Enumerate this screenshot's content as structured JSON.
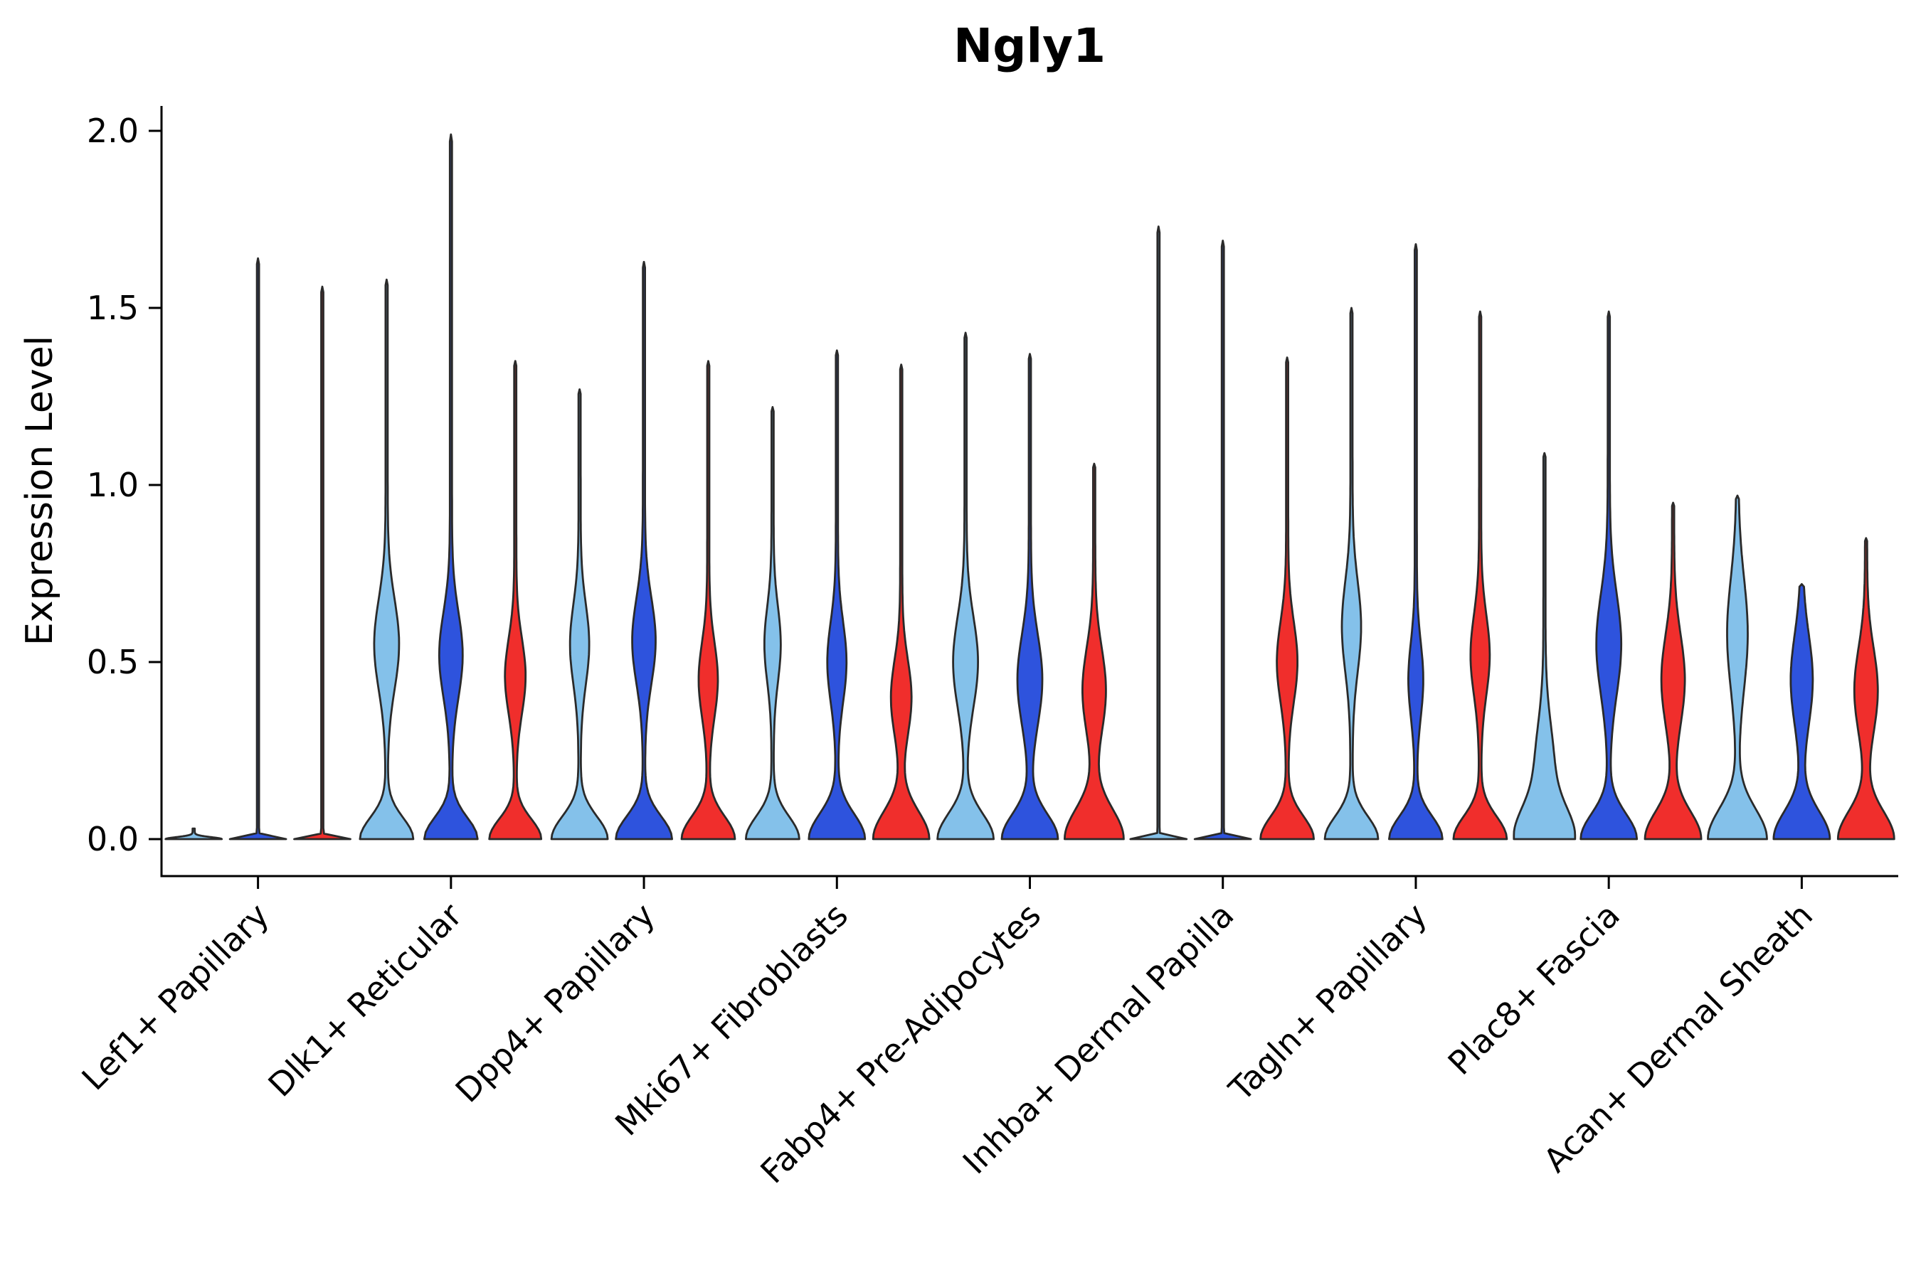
{
  "chart_data": {
    "type": "violin",
    "title": "Ngly1",
    "ylabel": "Expression Level",
    "xlabel": "",
    "ylim": [
      0,
      2.05
    ],
    "yticks": [
      0.0,
      0.5,
      1.0,
      1.5,
      2.0
    ],
    "ytick_labels": [
      "0.0",
      "0.5",
      "1.0",
      "1.5",
      "2.0"
    ],
    "grid": false,
    "legend": "none",
    "outline_color": "#2a2a2a",
    "axis_color": "#000000",
    "series_colors": [
      "#84C1EA",
      "#2E53DD",
      "#F02E2C"
    ],
    "categories": [
      "Lef1+ Papillary",
      "Dlk1+ Reticular",
      "Dpp4+ Papillary",
      "Mki67+ Fibroblasts",
      "Fabp4+ Pre-Adipocytes",
      "Inhba+ Dermal Papilla",
      "Tagln+ Papillary",
      "Plac8+ Fascia",
      "Acan+ Dermal Sheath"
    ],
    "groups": [
      {
        "label": "Lef1+ Papillary",
        "violins": [
          {
            "color": "#84C1EA",
            "max": 0.03,
            "base_hw": 38,
            "base_sigma": 0.008,
            "bulge_y": 0,
            "bulge_hw": 0,
            "bulge_sigma": 1
          },
          {
            "color": "#2E53DD",
            "max": 1.64,
            "base_hw": 38,
            "base_sigma": 0.008,
            "bulge_y": 0,
            "bulge_hw": 0,
            "bulge_sigma": 1
          },
          {
            "color": "#F02E2C",
            "max": 1.56,
            "base_hw": 38,
            "base_sigma": 0.008,
            "bulge_y": 0,
            "bulge_hw": 0,
            "bulge_sigma": 1
          }
        ]
      },
      {
        "label": "Dlk1+ Reticular",
        "violins": [
          {
            "color": "#84C1EA",
            "max": 1.58,
            "base_hw": 36,
            "base_sigma": 0.085,
            "bulge_y": 0.55,
            "bulge_hw": 16,
            "bulge_sigma": 0.18
          },
          {
            "color": "#2E53DD",
            "max": 1.99,
            "base_hw": 36,
            "base_sigma": 0.085,
            "bulge_y": 0.52,
            "bulge_hw": 15,
            "bulge_sigma": 0.17
          },
          {
            "color": "#F02E2C",
            "max": 1.35,
            "base_hw": 35,
            "base_sigma": 0.08,
            "bulge_y": 0.46,
            "bulge_hw": 13,
            "bulge_sigma": 0.15
          }
        ]
      },
      {
        "label": "Dpp4+ Papillary",
        "violins": [
          {
            "color": "#84C1EA",
            "max": 1.27,
            "base_hw": 38,
            "base_sigma": 0.09,
            "bulge_y": 0.55,
            "bulge_hw": 12,
            "bulge_sigma": 0.16
          },
          {
            "color": "#2E53DD",
            "max": 1.63,
            "base_hw": 38,
            "base_sigma": 0.09,
            "bulge_y": 0.56,
            "bulge_hw": 15,
            "bulge_sigma": 0.17
          },
          {
            "color": "#F02E2C",
            "max": 1.35,
            "base_hw": 36,
            "base_sigma": 0.09,
            "bulge_y": 0.45,
            "bulge_hw": 12,
            "bulge_sigma": 0.15
          }
        ]
      },
      {
        "label": "Mki67+ Fibroblasts",
        "violins": [
          {
            "color": "#84C1EA",
            "max": 1.22,
            "base_hw": 36,
            "base_sigma": 0.09,
            "bulge_y": 0.55,
            "bulge_hw": 10,
            "bulge_sigma": 0.15
          },
          {
            "color": "#2E53DD",
            "max": 1.38,
            "base_hw": 38,
            "base_sigma": 0.1,
            "bulge_y": 0.5,
            "bulge_hw": 12,
            "bulge_sigma": 0.16
          },
          {
            "color": "#F02E2C",
            "max": 1.34,
            "base_hw": 38,
            "base_sigma": 0.11,
            "bulge_y": 0.4,
            "bulge_hw": 13,
            "bulge_sigma": 0.15
          }
        ]
      },
      {
        "label": "Fabp4+ Pre-Adipocytes",
        "violins": [
          {
            "color": "#84C1EA",
            "max": 1.43,
            "base_hw": 38,
            "base_sigma": 0.1,
            "bulge_y": 0.5,
            "bulge_hw": 16,
            "bulge_sigma": 0.18
          },
          {
            "color": "#2E53DD",
            "max": 1.37,
            "base_hw": 38,
            "base_sigma": 0.1,
            "bulge_y": 0.45,
            "bulge_hw": 16,
            "bulge_sigma": 0.18
          },
          {
            "color": "#F02E2C",
            "max": 1.06,
            "base_hw": 40,
            "base_sigma": 0.12,
            "bulge_y": 0.42,
            "bulge_hw": 15,
            "bulge_sigma": 0.17
          }
        ]
      },
      {
        "label": "Inhba+ Dermal Papilla",
        "violins": [
          {
            "color": "#84C1EA",
            "max": 1.73,
            "base_hw": 38,
            "base_sigma": 0.008,
            "bulge_y": 0,
            "bulge_hw": 0,
            "bulge_sigma": 1
          },
          {
            "color": "#2E53DD",
            "max": 1.69,
            "base_hw": 38,
            "base_sigma": 0.008,
            "bulge_y": 0,
            "bulge_hw": 0,
            "bulge_sigma": 1
          },
          {
            "color": "#F02E2C",
            "max": 1.36,
            "base_hw": 36,
            "base_sigma": 0.09,
            "bulge_y": 0.5,
            "bulge_hw": 13,
            "bulge_sigma": 0.16
          }
        ]
      },
      {
        "label": "Tagln+ Papillary",
        "violins": [
          {
            "color": "#84C1EA",
            "max": 1.5,
            "base_hw": 36,
            "base_sigma": 0.09,
            "bulge_y": 0.6,
            "bulge_hw": 12,
            "bulge_sigma": 0.18
          },
          {
            "color": "#2E53DD",
            "max": 1.68,
            "base_hw": 36,
            "base_sigma": 0.09,
            "bulge_y": 0.45,
            "bulge_hw": 9,
            "bulge_sigma": 0.15
          },
          {
            "color": "#F02E2C",
            "max": 1.49,
            "base_hw": 36,
            "base_sigma": 0.09,
            "bulge_y": 0.52,
            "bulge_hw": 12,
            "bulge_sigma": 0.16
          }
        ]
      },
      {
        "label": "Plac8+ Fascia",
        "violins": [
          {
            "color": "#84C1EA",
            "max": 1.09,
            "base_hw": 38,
            "base_sigma": 0.12,
            "bulge_y": 0.2,
            "bulge_hw": 12,
            "bulge_sigma": 0.18
          },
          {
            "color": "#2E53DD",
            "max": 1.49,
            "base_hw": 38,
            "base_sigma": 0.1,
            "bulge_y": 0.55,
            "bulge_hw": 16,
            "bulge_sigma": 0.2
          },
          {
            "color": "#F02E2C",
            "max": 0.95,
            "base_hw": 38,
            "base_sigma": 0.11,
            "bulge_y": 0.45,
            "bulge_hw": 15,
            "bulge_sigma": 0.18
          }
        ]
      },
      {
        "label": "Acan+ Dermal Sheath",
        "violins": [
          {
            "color": "#84C1EA",
            "max": 0.97,
            "base_hw": 40,
            "base_sigma": 0.12,
            "bulge_y": 0.58,
            "bulge_hw": 13,
            "bulge_sigma": 0.22
          },
          {
            "color": "#2E53DD",
            "max": 0.72,
            "base_hw": 38,
            "base_sigma": 0.11,
            "bulge_y": 0.45,
            "bulge_hw": 14,
            "bulge_sigma": 0.18
          },
          {
            "color": "#F02E2C",
            "max": 0.85,
            "base_hw": 38,
            "base_sigma": 0.11,
            "bulge_y": 0.42,
            "bulge_hw": 15,
            "bulge_sigma": 0.17
          }
        ]
      }
    ]
  }
}
